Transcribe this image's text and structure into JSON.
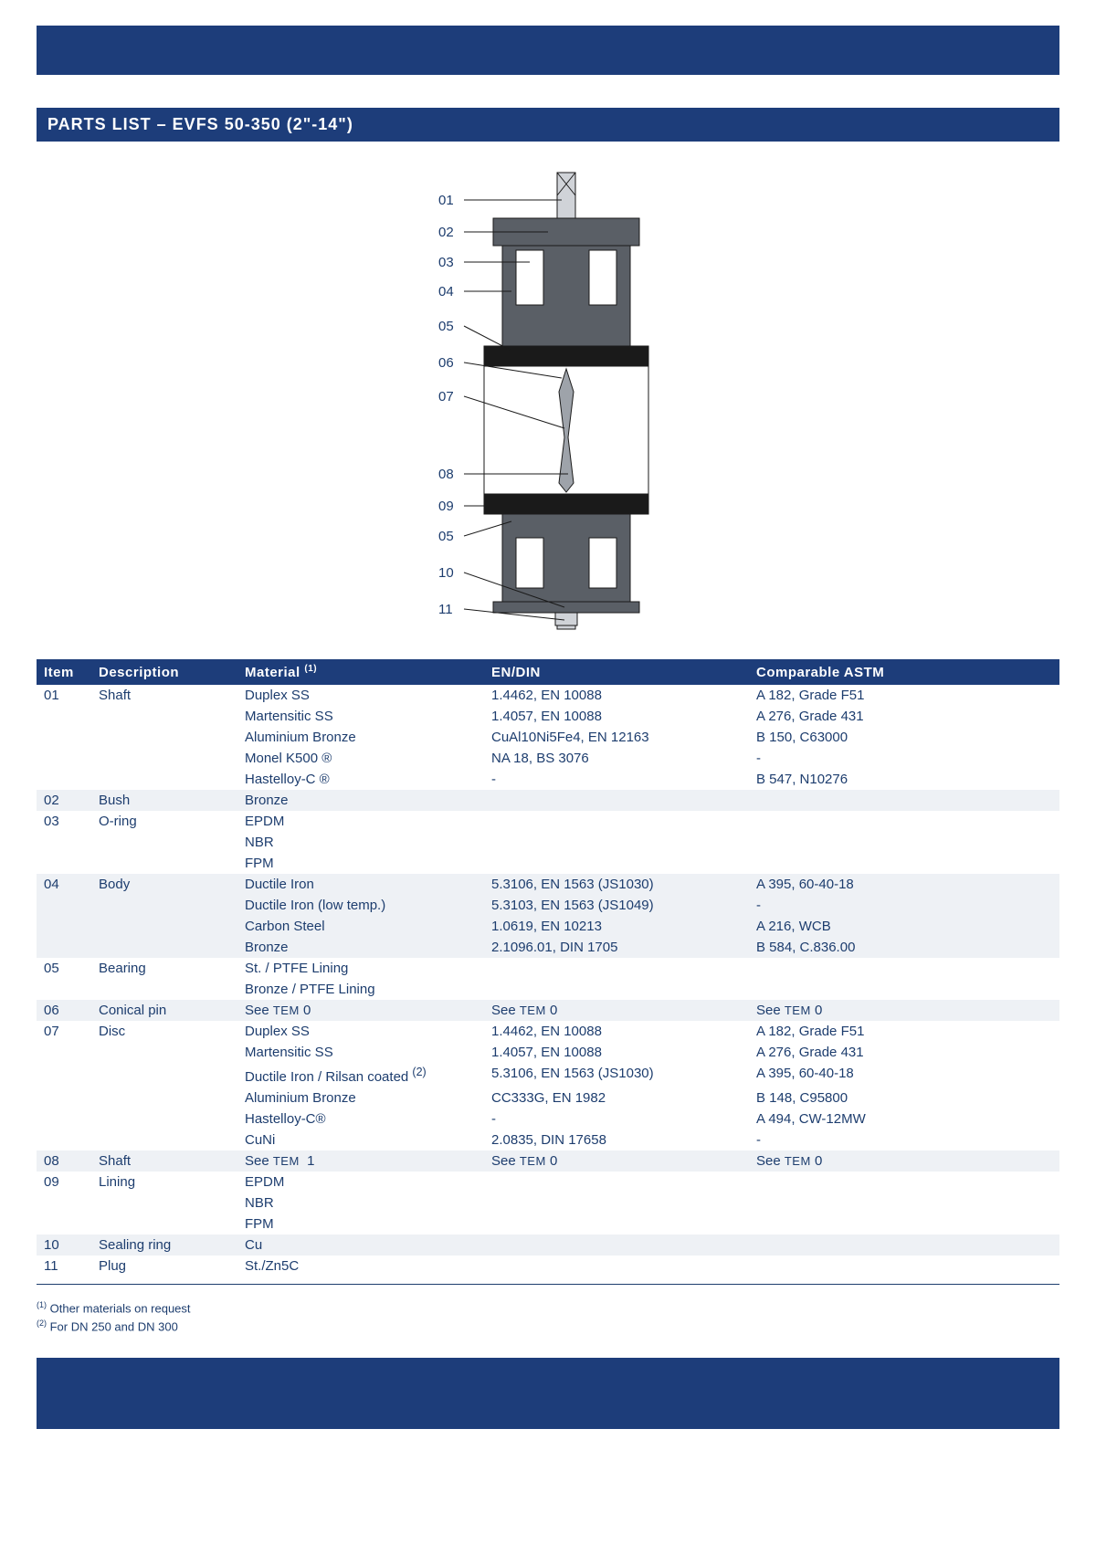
{
  "title": "PARTS LIST – EVFS 50-350 (2\"-14\")",
  "colors": {
    "brand": "#1d3d7a",
    "text": "#1d3d6e",
    "stripe": "#eef1f5",
    "dia_dark": "#5a5f66",
    "dia_mid": "#9ea3aa",
    "dia_light": "#d0d3d8",
    "dia_black": "#1a1a1a",
    "dia_white": "#ffffff"
  },
  "diagram": {
    "labels": [
      "01",
      "02",
      "03",
      "04",
      "05",
      "06",
      "07",
      "08",
      "09",
      "05",
      "10",
      "11"
    ]
  },
  "columns": {
    "item": "Item",
    "desc": "Description",
    "mat": "Material",
    "mat_sup": "(1)",
    "en": "EN/DIN",
    "astm": "Comparable ASTM"
  },
  "rows": [
    {
      "stripe": false,
      "item": "01",
      "desc": "Shaft",
      "mat": "Duplex SS",
      "en": "1.4462, EN 10088",
      "astm": "A 182, Grade F51"
    },
    {
      "stripe": false,
      "item": "",
      "desc": "",
      "mat": "Martensitic SS",
      "en": "1.4057, EN 10088",
      "astm": "A 276, Grade 431"
    },
    {
      "stripe": false,
      "item": "",
      "desc": "",
      "mat": "Aluminium Bronze",
      "en": "CuAl10Ni5Fe4, EN 12163",
      "astm": "B 150, C63000"
    },
    {
      "stripe": false,
      "item": "",
      "desc": "",
      "mat": "Monel K500 ®",
      "en": "NA 18, BS 3076",
      "astm": "-"
    },
    {
      "stripe": false,
      "item": "",
      "desc": "",
      "mat": "Hastelloy-C ®",
      "en": "-",
      "astm": "B 547, N10276"
    },
    {
      "stripe": true,
      "item": "02",
      "desc": "Bush",
      "mat": "Bronze",
      "en": "",
      "astm": ""
    },
    {
      "stripe": false,
      "item": "03",
      "desc": "O-ring",
      "mat": "EPDM",
      "en": "",
      "astm": ""
    },
    {
      "stripe": false,
      "item": "",
      "desc": "",
      "mat": "NBR",
      "en": "",
      "astm": ""
    },
    {
      "stripe": false,
      "item": "",
      "desc": "",
      "mat": "FPM",
      "en": "",
      "astm": ""
    },
    {
      "stripe": true,
      "item": "04",
      "desc": "Body",
      "mat": "Ductile Iron",
      "en": "5.3106, EN 1563 (JS1030)",
      "astm": "A 395, 60-40-18"
    },
    {
      "stripe": true,
      "item": "",
      "desc": "",
      "mat": "Ductile Iron (low temp.)",
      "en": "5.3103, EN 1563 (JS1049)",
      "astm": "-"
    },
    {
      "stripe": true,
      "item": "",
      "desc": "",
      "mat": "Carbon Steel",
      "en": "1.0619, EN 10213",
      "astm": "A 216, WCB"
    },
    {
      "stripe": true,
      "item": "",
      "desc": "",
      "mat": "Bronze",
      "en": "2.1096.01, DIN 1705",
      "astm": "B 584, C.836.00"
    },
    {
      "stripe": false,
      "item": "05",
      "desc": "Bearing",
      "mat": "St. / PTFE Lining",
      "en": "",
      "astm": ""
    },
    {
      "stripe": false,
      "item": "",
      "desc": "",
      "mat": "Bronze / PTFE Lining",
      "en": "",
      "astm": ""
    },
    {
      "stripe": true,
      "item": "06",
      "desc": "Conical pin",
      "mat_html": "See <span class=\"smallcaps\">TEM</span> 0",
      "en_html": "See <span class=\"smallcaps\">TEM</span> 0",
      "astm_html": "See <span class=\"smallcaps\">TEM</span> 0"
    },
    {
      "stripe": false,
      "item": "07",
      "desc": "Disc",
      "mat": "Duplex SS",
      "en": "1.4462, EN 10088",
      "astm": "A 182, Grade F51"
    },
    {
      "stripe": false,
      "item": "",
      "desc": "",
      "mat": "Martensitic SS",
      "en": "1.4057, EN 10088",
      "astm": "A 276, Grade 431"
    },
    {
      "stripe": false,
      "item": "",
      "desc": "",
      "mat_html": "Ductile Iron / Rilsan coated <sup>(2)</sup>",
      "en": "5.3106, EN 1563 (JS1030)",
      "astm": "A 395, 60-40-18"
    },
    {
      "stripe": false,
      "item": "",
      "desc": "",
      "mat": "Aluminium Bronze",
      "en": "CC333G, EN 1982",
      "astm": "B 148, C95800"
    },
    {
      "stripe": false,
      "item": "",
      "desc": "",
      "mat": "Hastelloy-C®",
      "en": "-",
      "astm": "A 494, CW-12MW"
    },
    {
      "stripe": false,
      "item": "",
      "desc": "",
      "mat": "CuNi",
      "en": "2.0835, DIN 17658",
      "astm": "-"
    },
    {
      "stripe": true,
      "item": "08",
      "desc": "Shaft",
      "mat_html": "See <span class=\"smallcaps\">TEM</span>&nbsp;&nbsp;1",
      "en_html": "See <span class=\"smallcaps\">TEM</span> 0",
      "astm_html": "See <span class=\"smallcaps\">TEM</span> 0"
    },
    {
      "stripe": false,
      "item": "09",
      "desc": "Lining",
      "mat": "EPDM",
      "en": "",
      "astm": ""
    },
    {
      "stripe": false,
      "item": "",
      "desc": "",
      "mat": "NBR",
      "en": "",
      "astm": ""
    },
    {
      "stripe": false,
      "item": "",
      "desc": "",
      "mat": "FPM",
      "en": "",
      "astm": ""
    },
    {
      "stripe": true,
      "item": "10",
      "desc": "Sealing ring",
      "mat": "Cu",
      "en": "",
      "astm": ""
    },
    {
      "stripe": false,
      "item": "11",
      "desc": "Plug",
      "mat": "St./Zn5C",
      "en": "",
      "astm": ""
    }
  ],
  "footnotes": [
    {
      "sup": "(1)",
      "text": " Other materials on request"
    },
    {
      "sup": "(2)",
      "text": " For DN 250 and DN 300"
    }
  ]
}
